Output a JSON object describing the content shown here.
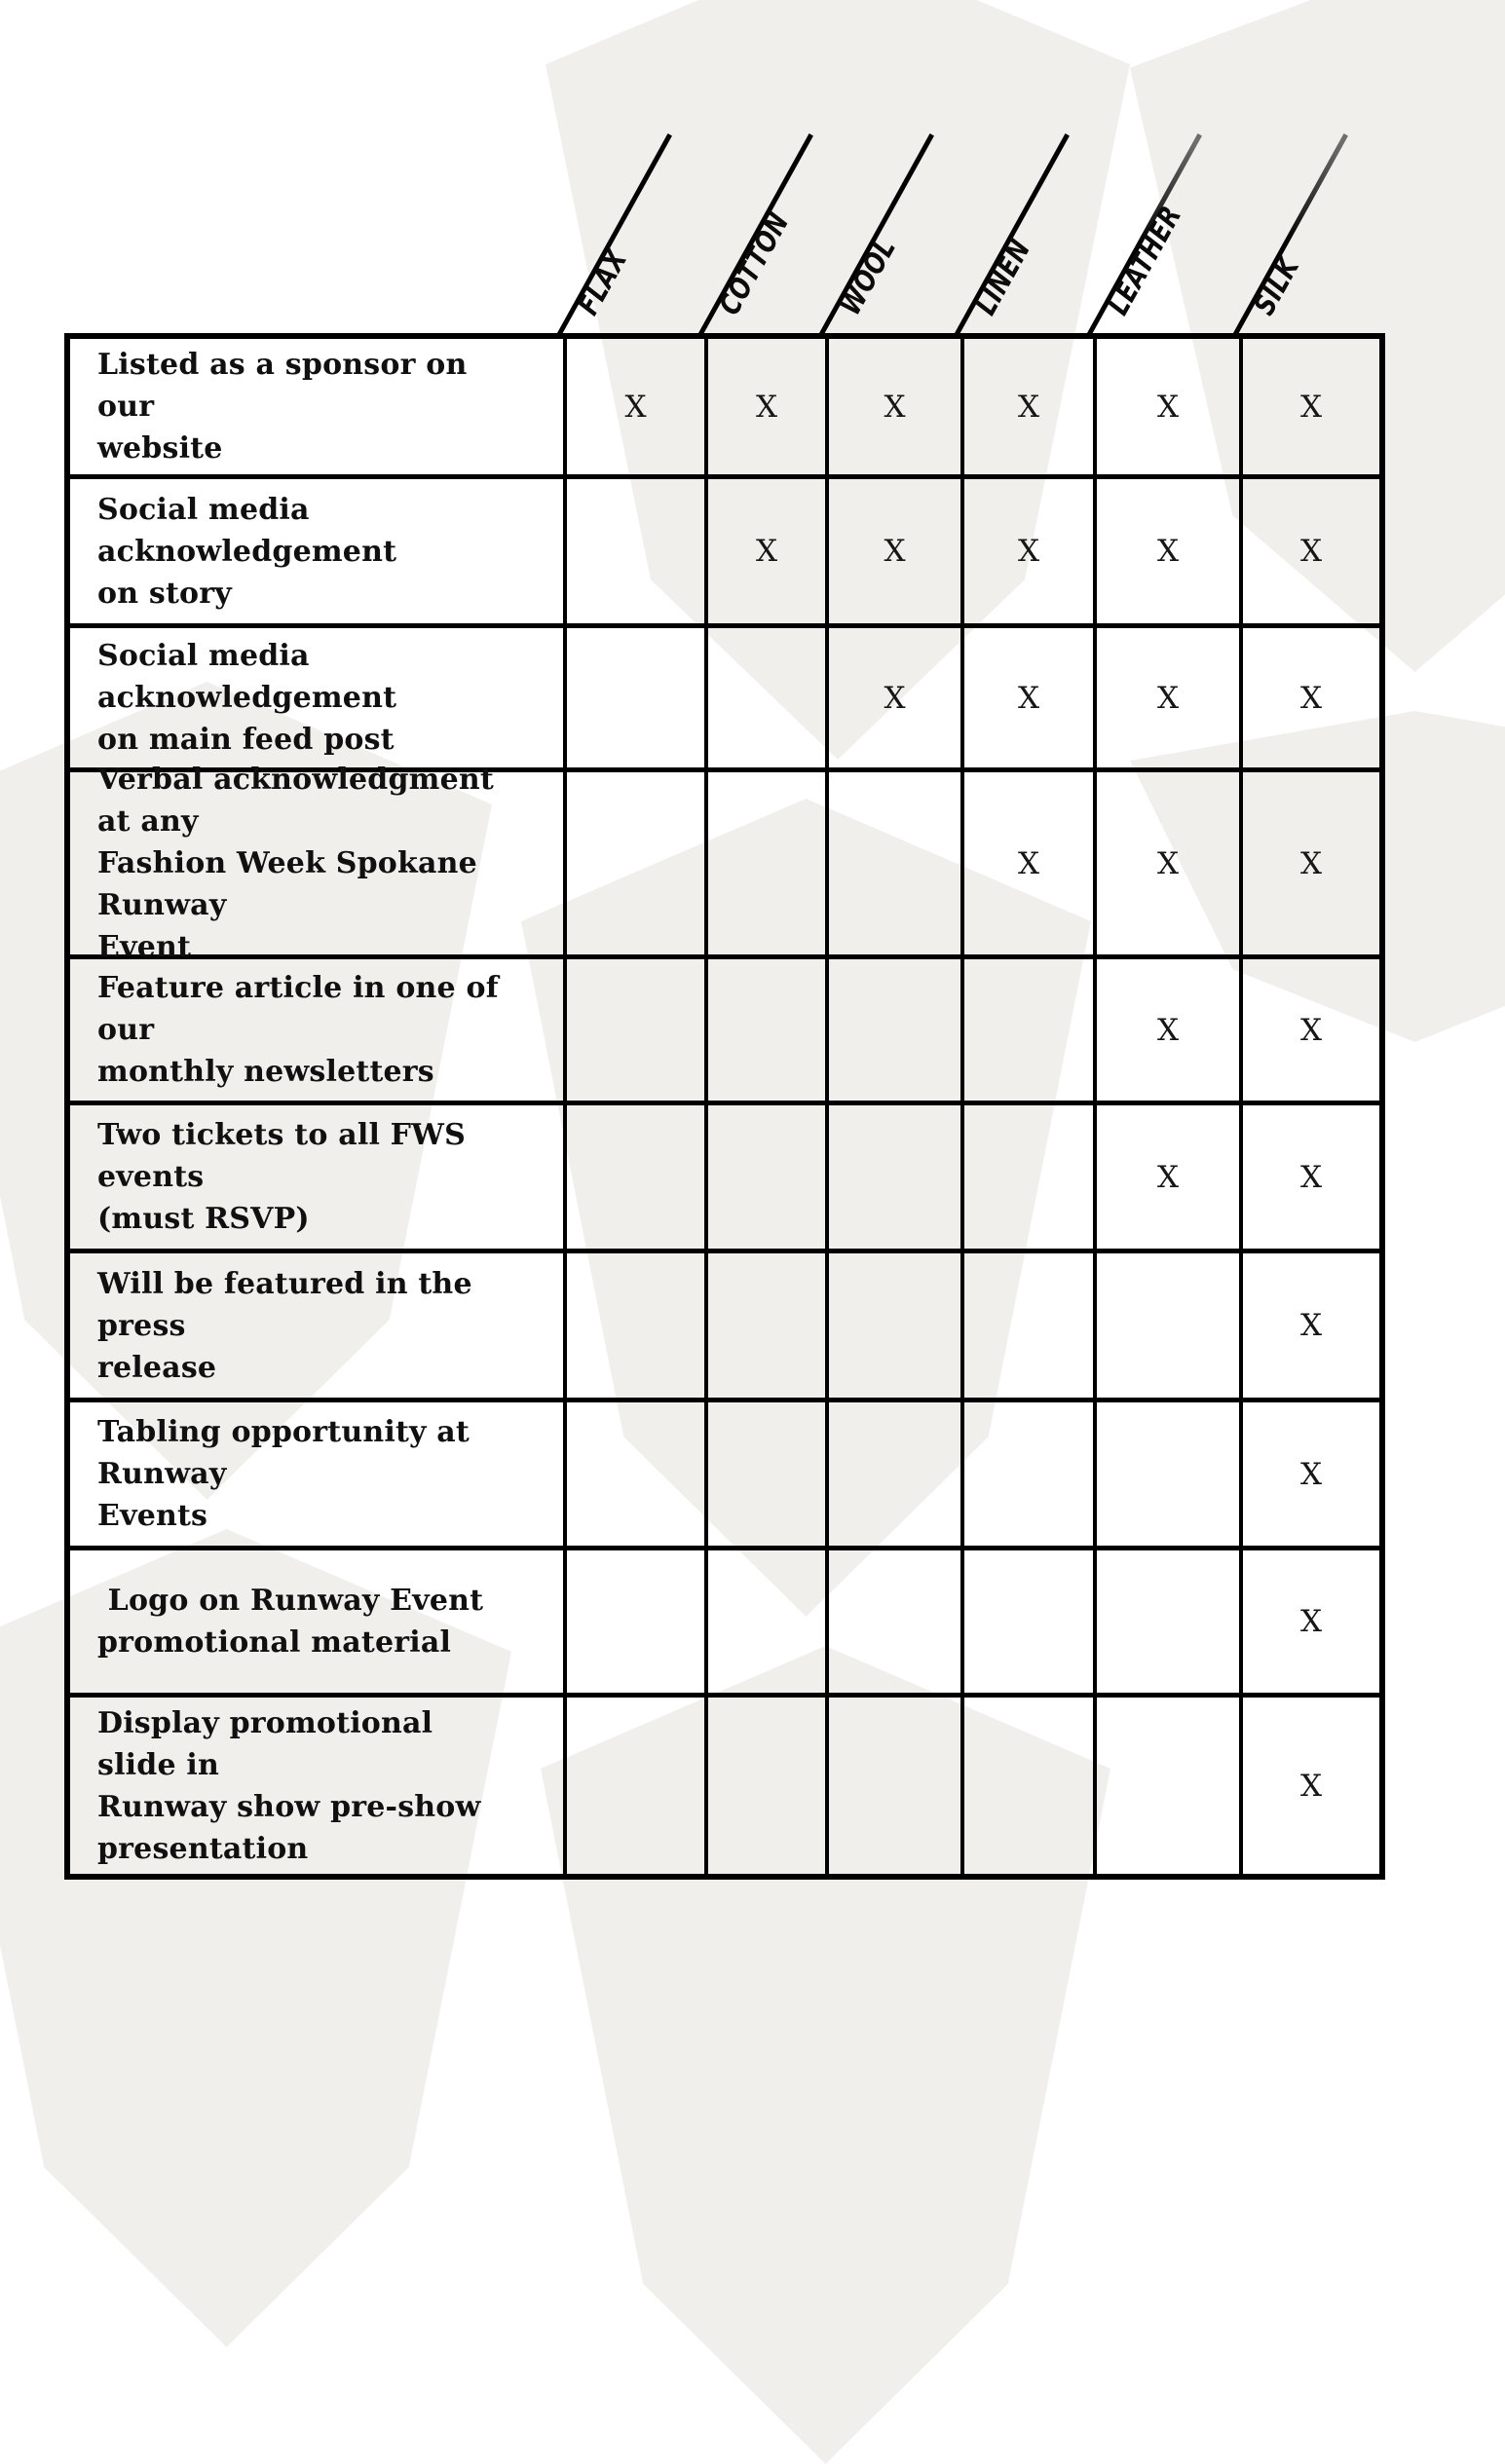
{
  "page": {
    "background_color": "#ffffff",
    "hexagon_color": "#f1efec"
  },
  "table": {
    "columns": [
      "FLAX",
      "COTTON",
      "WOOL",
      "LINEN",
      "LEATHER",
      "SILK"
    ],
    "mark_symbol": "X",
    "rows": [
      {
        "label": "Listed as a sponsor on our\nwebsite",
        "marks": [
          "X",
          "X",
          "X",
          "X",
          "X",
          "X"
        ]
      },
      {
        "label": "Social media acknowledgement\non story",
        "marks": [
          "",
          "X",
          "X",
          "X",
          "X",
          "X"
        ]
      },
      {
        "label": "Social media acknowledgement\non main feed post",
        "marks": [
          "",
          "",
          "X",
          "X",
          "X",
          "X"
        ]
      },
      {
        "label": "Verbal acknowledgment at any\nFashion Week Spokane Runway\nEvent",
        "marks": [
          "",
          "",
          "",
          "X",
          "X",
          "X"
        ]
      },
      {
        "label": "Feature article in one of our\nmonthly newsletters",
        "marks": [
          "",
          "",
          "",
          "",
          "X",
          "X"
        ]
      },
      {
        "label": "Two tickets to all FWS events\n(must RSVP)",
        "marks": [
          "",
          "",
          "",
          "",
          "X",
          "X"
        ]
      },
      {
        "label": "Will be featured in the press\nrelease",
        "marks": [
          "",
          "",
          "",
          "",
          "",
          "X"
        ]
      },
      {
        "label": "Tabling opportunity at Runway\nEvents",
        "marks": [
          "",
          "",
          "",
          "",
          "",
          "X"
        ]
      },
      {
        "label": " Logo on Runway Event\npromotional material",
        "marks": [
          "",
          "",
          "",
          "",
          "",
          "X"
        ]
      },
      {
        "label": "Display promotional slide in\nRunway show pre-show\npresentation",
        "marks": [
          "",
          "",
          "",
          "",
          "",
          "X"
        ]
      }
    ]
  }
}
